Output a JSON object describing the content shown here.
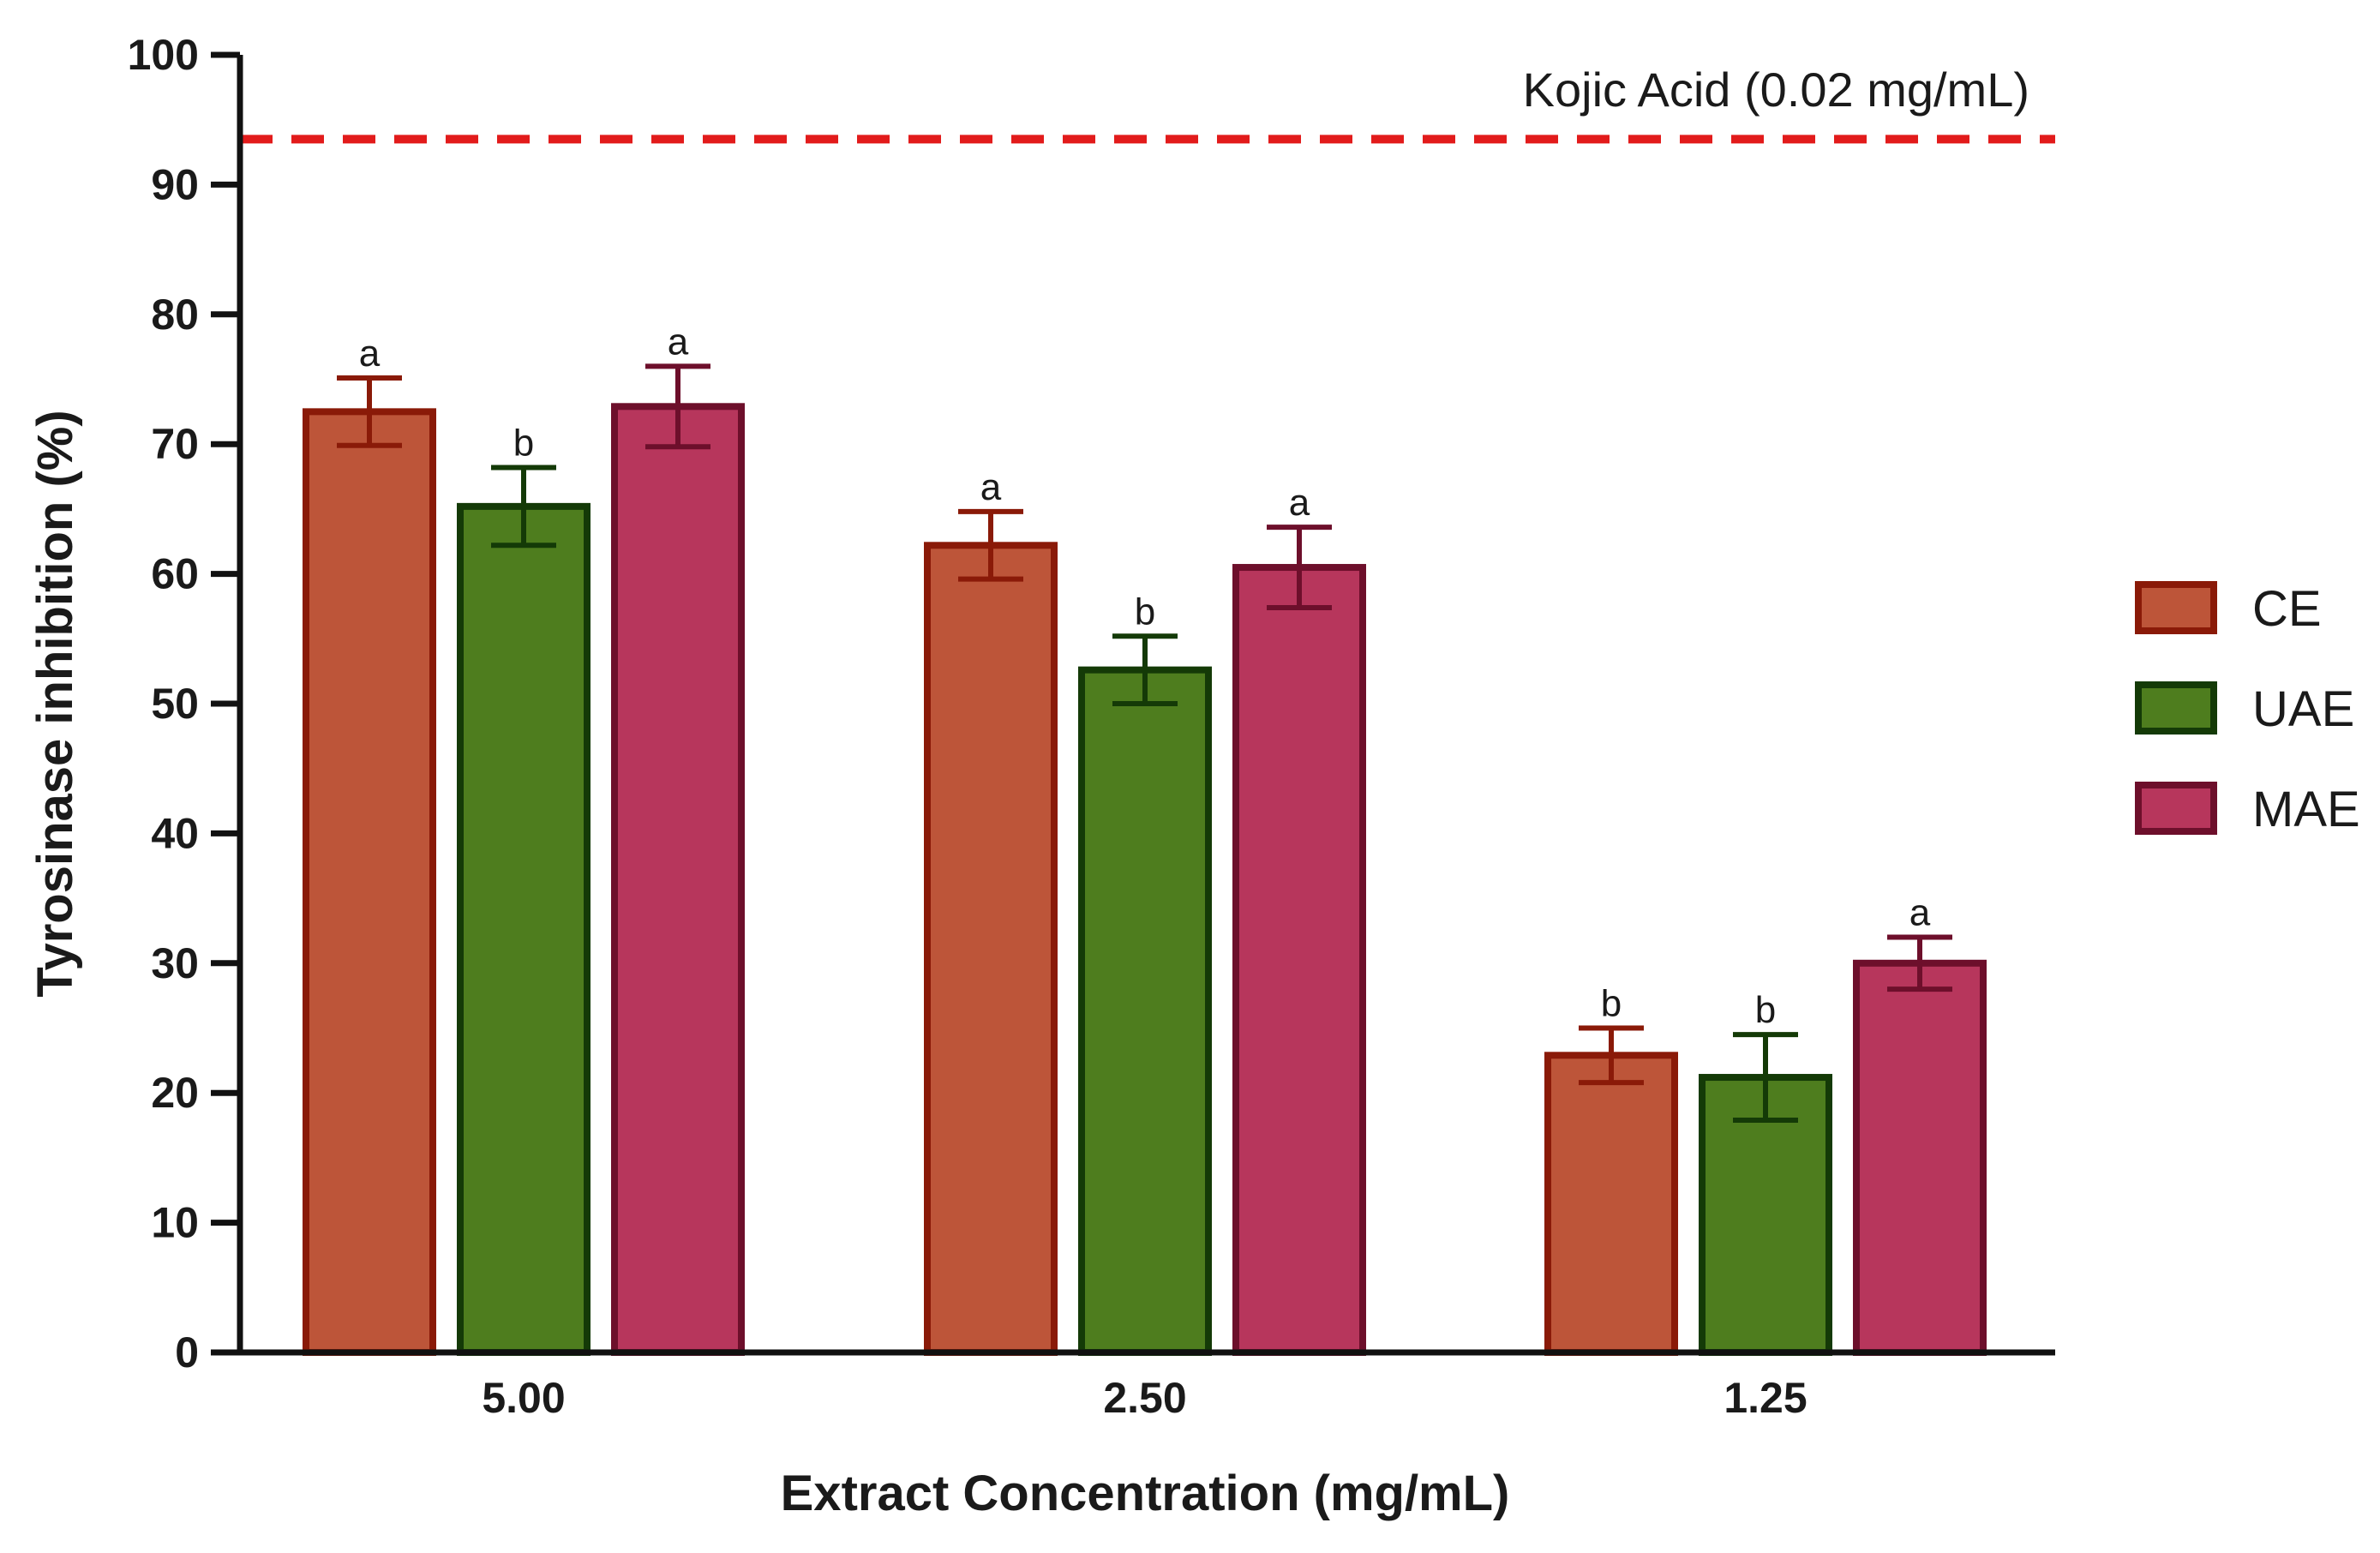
{
  "chart_data": {
    "type": "bar",
    "title": "",
    "xlabel": "Extract Concentration (mg/mL)",
    "ylabel": "Tyrosinase inhibition (%)",
    "ylim": [
      0,
      100
    ],
    "yticks": [
      "0",
      "10",
      "20",
      "30",
      "40",
      "50",
      "60",
      "70",
      "80",
      "90",
      "100"
    ],
    "categories": [
      "5.00",
      "2.50",
      "1.25"
    ],
    "series": [
      {
        "name": "CE",
        "fill": "#bd5539",
        "stroke": "#8a1a08",
        "values": [
          72.5,
          62.2,
          22.9
        ],
        "errors": [
          2.6,
          2.6,
          2.1
        ],
        "letters": [
          "a",
          "a",
          "b"
        ]
      },
      {
        "name": "UAE",
        "fill": "#4e7d1e",
        "stroke": "#143a07",
        "values": [
          65.2,
          52.6,
          21.2
        ],
        "errors": [
          3.0,
          2.6,
          3.3
        ],
        "letters": [
          "b",
          "b",
          "b"
        ]
      },
      {
        "name": "MAE",
        "fill": "#b7365c",
        "stroke": "#6d0f2b",
        "values": [
          72.9,
          60.5,
          30.0
        ],
        "errors": [
          3.1,
          3.1,
          2.0
        ],
        "letters": [
          "a",
          "a",
          "a"
        ]
      }
    ],
    "reference_line": {
      "label": "Kojic Acid (0.02 mg/mL)",
      "value": 93.5,
      "color": "#e21b1b"
    },
    "legend": "right"
  }
}
